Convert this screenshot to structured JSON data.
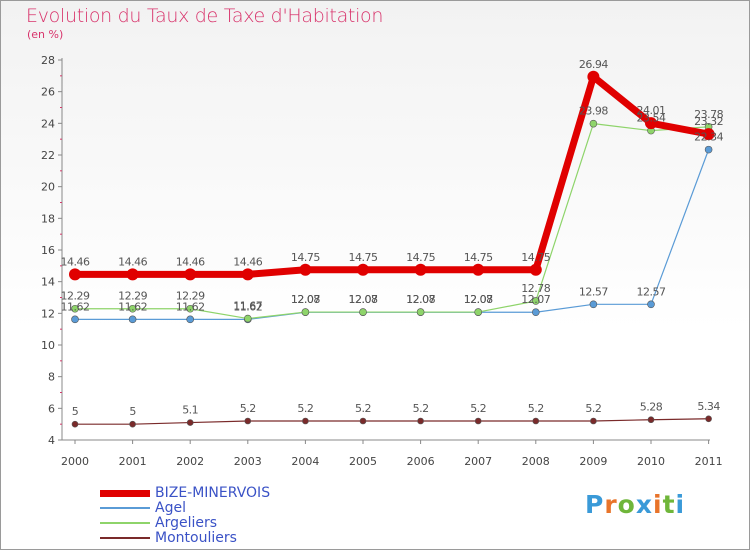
{
  "title": "Evolution du Taux de Taxe d'Habitation",
  "subtitle": "(en %)",
  "logo": {
    "letters": [
      "P",
      "r",
      "o",
      "x",
      "i",
      "t",
      "i"
    ],
    "colors": [
      "#3a9ad8",
      "#e8742a",
      "#6fb63a",
      "#3a9ad8",
      "#e8742a",
      "#6fb63a",
      "#3a9ad8"
    ]
  },
  "chart_data": {
    "type": "line",
    "title": "Evolution du Taux de Taxe d'Habitation",
    "ylabel": "(en %)",
    "xlabel": "",
    "categories": [
      "2000",
      "2001",
      "2002",
      "2003",
      "2004",
      "2005",
      "2006",
      "2007",
      "2008",
      "2009",
      "2010",
      "2011"
    ],
    "ylim": [
      4,
      28
    ],
    "yticks": [
      4,
      6,
      8,
      10,
      12,
      14,
      16,
      18,
      20,
      22,
      24,
      26,
      28
    ],
    "grid": false,
    "legend_position": "bottom-left",
    "series": [
      {
        "name": "BIZE-MINERVOIS",
        "color": "#e00000",
        "width": 7,
        "marker_r": 6,
        "values": [
          14.46,
          14.46,
          14.46,
          14.46,
          14.75,
          14.75,
          14.75,
          14.75,
          14.75,
          26.94,
          24.01,
          23.32
        ],
        "labels": [
          "14.46",
          "14.46",
          "14.46",
          "14.46",
          "14.75",
          "14.75",
          "14.75",
          "14.75",
          "14.75",
          "26.94",
          "24.01",
          "23.32"
        ]
      },
      {
        "name": "Agel",
        "color": "#5a9bd6",
        "width": 1.2,
        "marker_r": 3.5,
        "values": [
          11.62,
          11.62,
          11.62,
          11.62,
          12.07,
          12.07,
          12.07,
          12.07,
          12.07,
          12.57,
          12.57,
          22.34
        ],
        "labels": [
          "11.62",
          "11.62",
          "11.62",
          "11.62",
          "12.07",
          "12.07",
          "12.07",
          "12.07",
          "12.07",
          "12.57",
          "12.57",
          "22.34"
        ]
      },
      {
        "name": "Argeliers",
        "color": "#8ed46a",
        "width": 1.2,
        "marker_r": 3.5,
        "values": [
          12.29,
          12.29,
          12.29,
          11.67,
          12.08,
          12.08,
          12.08,
          12.08,
          12.78,
          23.98,
          23.54,
          23.78
        ],
        "labels": [
          "12.29",
          "12.29",
          "12.29",
          "11.67",
          "12.08",
          "12.08",
          "12.08",
          "12.08",
          "12.78",
          "23.98",
          "23.54",
          "23.78"
        ]
      },
      {
        "name": "Montouliers",
        "color": "#7a2a2a",
        "width": 1.2,
        "marker_r": 3,
        "values": [
          5,
          5,
          5.1,
          5.2,
          5.2,
          5.2,
          5.2,
          5.2,
          5.2,
          5.2,
          5.28,
          5.34
        ],
        "labels": [
          "5",
          "5",
          "5.1",
          "5.2",
          "5.2",
          "5.2",
          "5.2",
          "5.2",
          "5.2",
          "5.2",
          "5.28",
          "5.34"
        ]
      }
    ]
  }
}
